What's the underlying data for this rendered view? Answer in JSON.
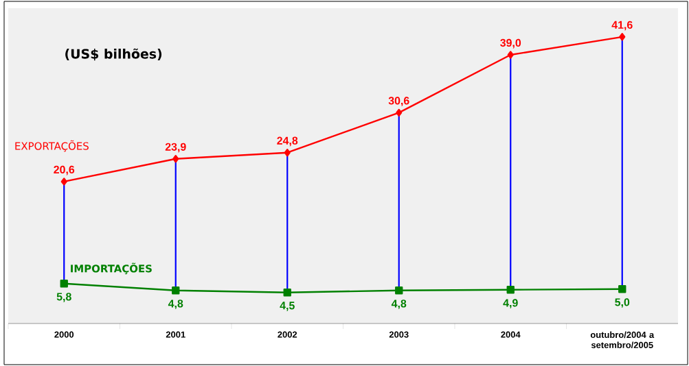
{
  "chart_data": {
    "type": "line",
    "annotations": [
      "(US$ bilhões)"
    ],
    "categories": [
      "2000",
      "2001",
      "2002",
      "2003",
      "2004",
      "outubro/2004 a setembro/2005"
    ],
    "series": [
      {
        "name": "EXPORTAÇÕES",
        "color": "#ff0000",
        "marker": "diamond",
        "values": [
          20.6,
          23.9,
          24.8,
          30.6,
          39.0,
          41.6
        ],
        "value_labels": [
          "20,6",
          "23,9",
          "24,8",
          "30,6",
          "39,0",
          "41,6"
        ]
      },
      {
        "name": "IMPORTAÇÕES",
        "color": "#008000",
        "marker": "square",
        "values": [
          5.8,
          4.8,
          4.5,
          4.8,
          4.9,
          5.0
        ],
        "value_labels": [
          "5,8",
          "4,8",
          "4,5",
          "4,8",
          "4,9",
          "5,0"
        ]
      }
    ],
    "legend": false
  }
}
